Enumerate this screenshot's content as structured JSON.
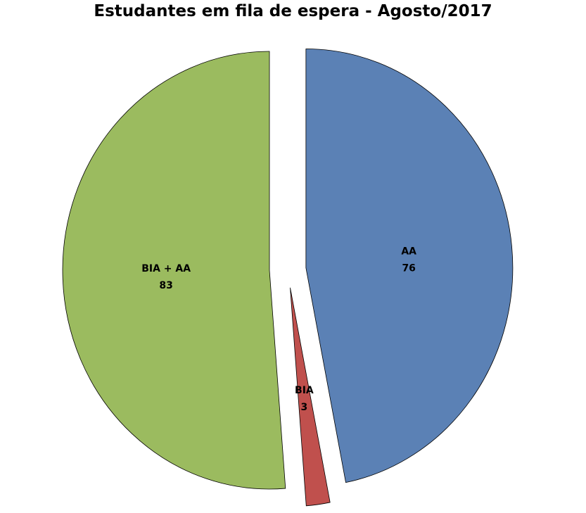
{
  "chart_data": {
    "type": "pie",
    "title": "Estudantes em fila de espera - Agosto/2017",
    "exploded": true,
    "start_angle": "top, clockwise",
    "slices": [
      {
        "label": "AA",
        "value": 76,
        "color": "#5b81b5"
      },
      {
        "label": "BIA",
        "value": 3,
        "color": "#c0504d"
      },
      {
        "label": "BIA + AA",
        "value": 83,
        "color": "#9bbb5f"
      }
    ]
  }
}
